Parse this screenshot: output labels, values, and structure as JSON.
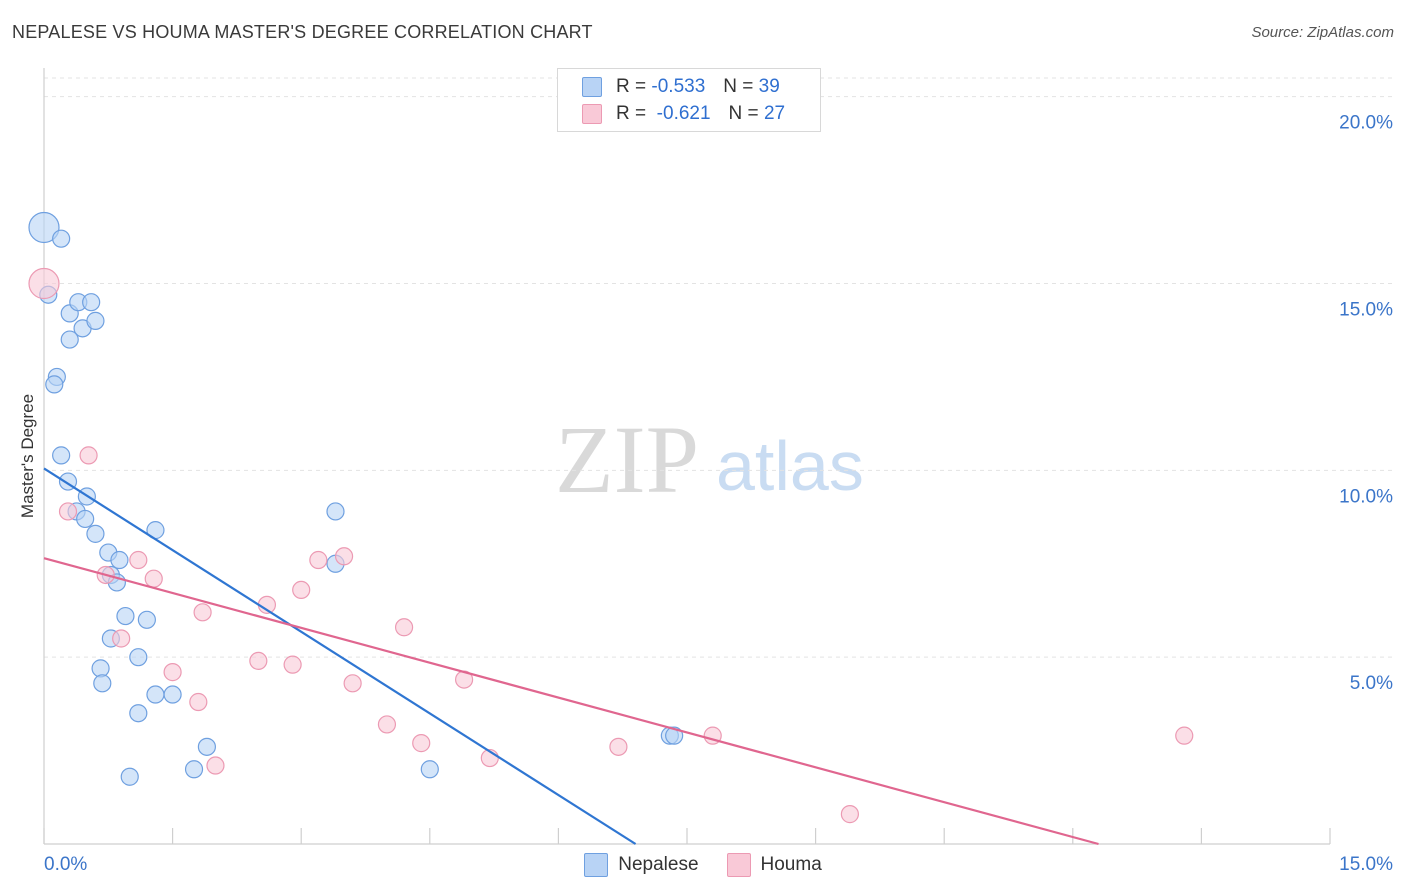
{
  "header": {
    "title": "NEPALESE VS HOUMA MASTER'S DEGREE CORRELATION CHART",
    "source": "Source: ZipAtlas.com"
  },
  "legend_top": {
    "rows": [
      {
        "r_label": "R =",
        "r_value": "-0.533",
        "n_label": "N =",
        "n_value": "39"
      },
      {
        "r_label": "R =",
        "r_value": "-0.621",
        "n_label": "N =",
        "n_value": "27"
      }
    ]
  },
  "legend_bottom": {
    "items": [
      "Nepalese",
      "Houma"
    ]
  },
  "colors": {
    "nepalese_fill": "#b8d3f5",
    "nepalese_stroke": "#6fa0e0",
    "nepalese_line": "#2f76d2",
    "houma_fill": "#f9c9d7",
    "houma_stroke": "#ec9ab3",
    "houma_line": "#e0668f",
    "tick_label": "#3b75c9",
    "grid": "#e3e3e3"
  },
  "chart_data": {
    "type": "scatter",
    "title": "NEPALESE VS HOUMA MASTER'S DEGREE CORRELATION CHART",
    "xlabel": "",
    "ylabel": "Master's Degree",
    "xlim": [
      0,
      15
    ],
    "ylim": [
      0,
      20.5
    ],
    "x_tick_labels": [
      "0.0%",
      "15.0%"
    ],
    "y_ticks": [
      5,
      10,
      15,
      20
    ],
    "y_tick_labels": [
      "5.0%",
      "10.0%",
      "15.0%",
      "20.0%"
    ],
    "watermark": {
      "zip": "ZIP",
      "atlas": "atlas"
    },
    "series": [
      {
        "name": "Nepalese",
        "r": -0.533,
        "n": 39,
        "points": [
          [
            0.0,
            16.5
          ],
          [
            0.2,
            16.2
          ],
          [
            0.05,
            14.7
          ],
          [
            0.3,
            14.2
          ],
          [
            0.4,
            14.5
          ],
          [
            0.55,
            14.5
          ],
          [
            0.45,
            13.8
          ],
          [
            0.6,
            14.0
          ],
          [
            0.3,
            13.5
          ],
          [
            0.15,
            12.5
          ],
          [
            0.12,
            12.3
          ],
          [
            0.2,
            10.4
          ],
          [
            0.28,
            9.7
          ],
          [
            0.5,
            9.3
          ],
          [
            0.38,
            8.9
          ],
          [
            0.48,
            8.7
          ],
          [
            0.6,
            8.3
          ],
          [
            1.3,
            8.4
          ],
          [
            0.75,
            7.8
          ],
          [
            0.88,
            7.6
          ],
          [
            0.78,
            7.2
          ],
          [
            0.85,
            7.0
          ],
          [
            0.95,
            6.1
          ],
          [
            1.2,
            6.0
          ],
          [
            0.78,
            5.5
          ],
          [
            1.1,
            5.0
          ],
          [
            0.66,
            4.7
          ],
          [
            0.68,
            4.3
          ],
          [
            1.3,
            4.0
          ],
          [
            1.5,
            4.0
          ],
          [
            1.1,
            3.5
          ],
          [
            1.9,
            2.6
          ],
          [
            1.75,
            2.0
          ],
          [
            1.0,
            1.8
          ],
          [
            3.4,
            7.5
          ],
          [
            3.4,
            8.9
          ],
          [
            4.5,
            2.0
          ],
          [
            7.3,
            2.9
          ],
          [
            7.35,
            2.9
          ]
        ],
        "trend": {
          "x": [
            0.0,
            6.9
          ],
          "y": [
            10.05,
            0.0
          ]
        }
      },
      {
        "name": "Houma",
        "r": -0.621,
        "n": 27,
        "points": [
          [
            0.0,
            15.0
          ],
          [
            0.52,
            10.4
          ],
          [
            0.28,
            8.9
          ],
          [
            0.72,
            7.2
          ],
          [
            1.1,
            7.6
          ],
          [
            1.28,
            7.1
          ],
          [
            0.9,
            5.5
          ],
          [
            1.5,
            4.6
          ],
          [
            1.8,
            3.8
          ],
          [
            1.85,
            6.2
          ],
          [
            2.0,
            2.1
          ],
          [
            2.5,
            4.9
          ],
          [
            2.6,
            6.4
          ],
          [
            2.9,
            4.8
          ],
          [
            3.0,
            6.8
          ],
          [
            3.2,
            7.6
          ],
          [
            3.5,
            7.7
          ],
          [
            3.6,
            4.3
          ],
          [
            4.0,
            3.2
          ],
          [
            4.2,
            5.8
          ],
          [
            4.4,
            2.7
          ],
          [
            4.9,
            4.4
          ],
          [
            5.2,
            2.3
          ],
          [
            6.7,
            2.6
          ],
          [
            7.8,
            2.9
          ],
          [
            9.4,
            0.8
          ],
          [
            13.3,
            2.9
          ]
        ],
        "trend": {
          "x": [
            0.0,
            12.3
          ],
          "y": [
            7.65,
            0.0
          ]
        }
      }
    ]
  }
}
